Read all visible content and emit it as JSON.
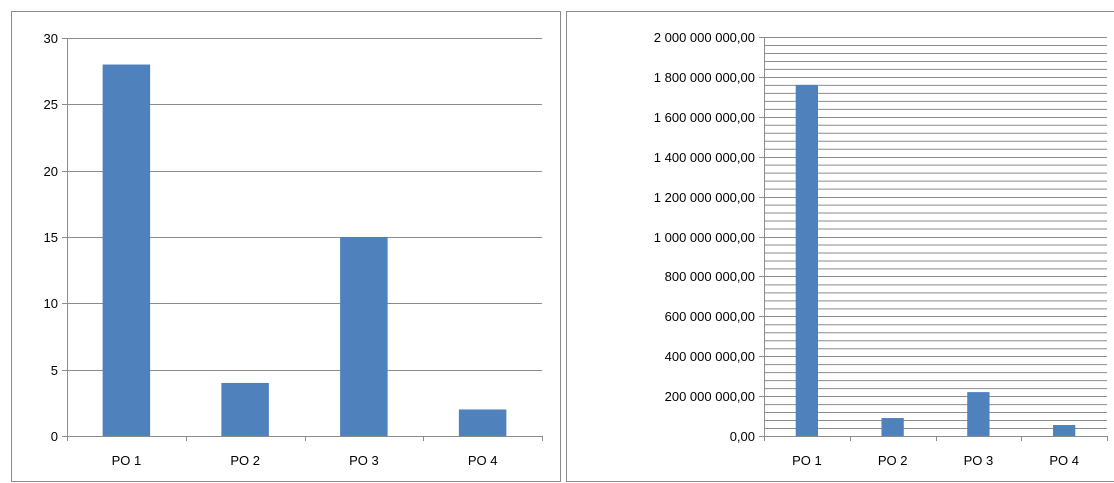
{
  "charts": [
    {
      "id": "count",
      "chart_data": {
        "type": "bar",
        "categories": [
          "PO 1",
          "PO 2",
          "PO 3",
          "PO 4"
        ],
        "values": [
          28,
          4,
          15,
          2
        ],
        "ylim": [
          0,
          30
        ],
        "yticks": [
          0,
          5,
          10,
          15,
          20,
          25,
          30
        ],
        "ytick_labels": [
          "0",
          "5",
          "10",
          "15",
          "20",
          "25",
          "30"
        ],
        "major_grid": true,
        "minor_grid": false,
        "legend": "none",
        "bar_color": "#4F81BD",
        "grid_color": "#8C8C8C"
      }
    },
    {
      "id": "amount",
      "chart_data": {
        "type": "bar",
        "categories": [
          "PO 1",
          "PO 2",
          "PO 3",
          "PO 4"
        ],
        "values": [
          1760000000,
          90000000,
          220000000,
          55000000
        ],
        "ylim": [
          0,
          2000000000
        ],
        "yticks": [
          0,
          200000000,
          400000000,
          600000000,
          800000000,
          1000000000,
          1200000000,
          1400000000,
          1600000000,
          1800000000,
          2000000000
        ],
        "ytick_labels": [
          "0,00",
          "200 000 000,00",
          "400 000 000,00",
          "600 000 000,00",
          "800 000 000,00",
          "1 000 000 000,00",
          "1 200 000 000,00",
          "1 400 000 000,00",
          "1 600 000 000,00",
          "1 800 000 000,00",
          "2 000 000 000,00"
        ],
        "major_grid": true,
        "minor_grid": true,
        "minor_per_major": 5,
        "legend": "none",
        "bar_color": "#4F81BD",
        "grid_color": "#8C8C8C"
      }
    }
  ]
}
